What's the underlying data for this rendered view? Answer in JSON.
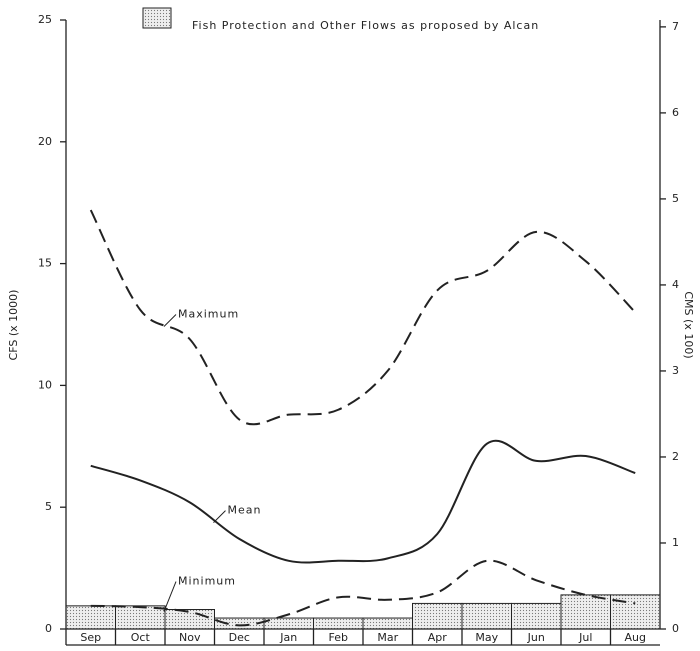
{
  "chart_data": {
    "type": "line",
    "ylabel": "CFS (x 1000)",
    "y2label": "CMS (x 100)",
    "categories": [
      "Sep",
      "Oct",
      "Nov",
      "Dec",
      "Jan",
      "Feb",
      "Mar",
      "Apr",
      "May",
      "Jun",
      "Jul",
      "Aug"
    ],
    "ylim": [
      0,
      25
    ],
    "yticks": [
      0,
      5,
      10,
      15,
      20,
      25
    ],
    "y2lim": [
      0,
      7.08
    ],
    "y2ticks": [
      0,
      1,
      2,
      3,
      4,
      5,
      6,
      7
    ],
    "series": [
      {
        "name": "Maximum",
        "color": "#222",
        "dashed": true,
        "values": [
          17.2,
          13.1,
          11.9,
          8.6,
          8.8,
          9.0,
          10.6,
          13.9,
          14.7,
          16.3,
          15.1,
          13.0
        ]
      },
      {
        "name": "Mean",
        "color": "#222",
        "dashed": false,
        "values": [
          6.7,
          6.1,
          5.2,
          3.7,
          2.8,
          2.8,
          2.9,
          3.9,
          7.6,
          6.9,
          7.1,
          6.4
        ]
      },
      {
        "name": "Minimum",
        "color": "#222",
        "dashed": true,
        "values": [
          0.95,
          0.9,
          0.7,
          0.15,
          0.6,
          1.3,
          1.2,
          1.5,
          2.8,
          2.0,
          1.4,
          1.05
        ]
      },
      {
        "name": "Fish Protection and Other Flows as proposed by Alcan",
        "type": "step",
        "color": "#999",
        "values": [
          0.95,
          0.95,
          0.8,
          0.45,
          0.45,
          0.45,
          0.45,
          1.05,
          1.05,
          1.05,
          1.4,
          1.4
        ]
      }
    ]
  }
}
